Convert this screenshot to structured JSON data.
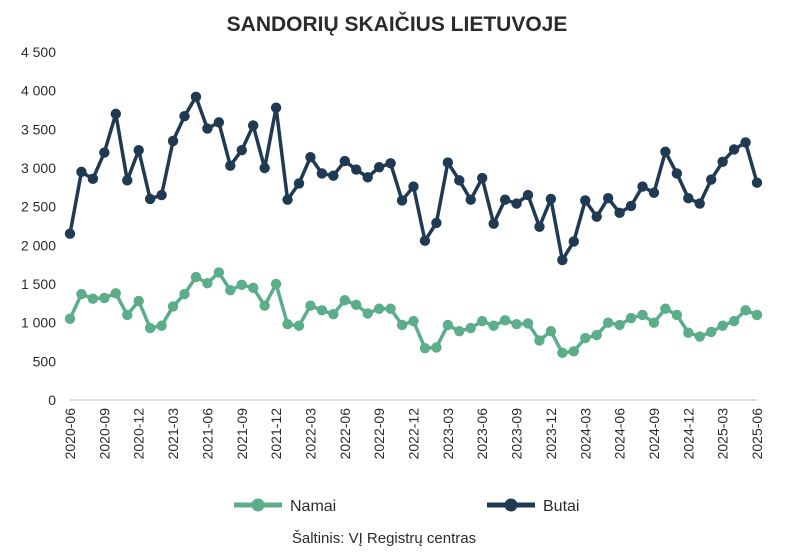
{
  "chart_data": {
    "type": "line",
    "title": "SANDORIŲ SKAIČIUS LIETUVOJE",
    "source": "Šaltinis: VĮ Registrų centras",
    "ylim": [
      0,
      4500
    ],
    "yticks": [
      0,
      500,
      1000,
      1500,
      2000,
      2500,
      3000,
      3500,
      4000,
      4500
    ],
    "ytick_labels": [
      "0",
      "500",
      "1 000",
      "1 500",
      "2 000",
      "2 500",
      "3 000",
      "3 500",
      "4 000",
      "4 500"
    ],
    "xtick_labels": [
      "2020-06",
      "2020-09",
      "2020-12",
      "2021-03",
      "2021-06",
      "2021-09",
      "2021-12",
      "2022-03",
      "2022-06",
      "2022-09",
      "2022-12",
      "2023-03",
      "2023-06",
      "2023-09",
      "2023-12",
      "2024-03",
      "2024-06",
      "2024-09",
      "2024-12",
      "2025-03",
      "2025-06"
    ],
    "x": [
      "2020-06",
      "2020-07",
      "2020-08",
      "2020-09",
      "2020-10",
      "2020-11",
      "2020-12",
      "2021-01",
      "2021-02",
      "2021-03",
      "2021-04",
      "2021-05",
      "2021-06",
      "2021-07",
      "2021-08",
      "2021-09",
      "2021-10",
      "2021-11",
      "2021-12",
      "2022-01",
      "2022-02",
      "2022-03",
      "2022-04",
      "2022-05",
      "2022-06",
      "2022-07",
      "2022-08",
      "2022-09",
      "2022-10",
      "2022-11",
      "2022-12",
      "2023-01",
      "2023-02",
      "2023-03",
      "2023-04",
      "2023-05",
      "2023-06",
      "2023-07",
      "2023-08",
      "2023-09",
      "2023-10",
      "2023-11",
      "2023-12",
      "2024-01",
      "2024-02",
      "2024-03",
      "2024-04",
      "2024-05",
      "2024-06",
      "2024-07",
      "2024-08",
      "2024-09",
      "2024-10",
      "2024-11",
      "2024-12",
      "2025-01",
      "2025-02",
      "2025-03",
      "2025-04",
      "2025-05",
      "2025-06"
    ],
    "legend_position": "bottom",
    "grid": false,
    "series": [
      {
        "name": "Namai",
        "color": "#5cad8a",
        "values": [
          1050,
          1370,
          1310,
          1320,
          1380,
          1100,
          1280,
          930,
          960,
          1210,
          1370,
          1590,
          1510,
          1650,
          1420,
          1490,
          1450,
          1220,
          1500,
          980,
          960,
          1220,
          1160,
          1110,
          1290,
          1230,
          1120,
          1180,
          1180,
          970,
          1020,
          670,
          680,
          970,
          890,
          930,
          1020,
          960,
          1030,
          980,
          990,
          770,
          890,
          610,
          630,
          800,
          840,
          1000,
          970,
          1060,
          1100,
          1000,
          1180,
          1100,
          870,
          820,
          880,
          960,
          1020,
          1160,
          1100
        ]
      },
      {
        "name": "Butai",
        "color": "#1f3a52",
        "values": [
          2150,
          2950,
          2860,
          3200,
          3700,
          2840,
          3230,
          2600,
          2650,
          3350,
          3670,
          3920,
          3510,
          3590,
          3030,
          3230,
          3550,
          3000,
          3780,
          2590,
          2800,
          3140,
          2930,
          2900,
          3090,
          2980,
          2880,
          3010,
          3060,
          2580,
          2760,
          2060,
          2290,
          3070,
          2840,
          2590,
          2870,
          2280,
          2590,
          2540,
          2650,
          2240,
          2600,
          1810,
          2050,
          2580,
          2370,
          2610,
          2420,
          2510,
          2760,
          2680,
          3210,
          2930,
          2610,
          2540,
          2850,
          3080,
          3240,
          3330,
          2810
        ]
      }
    ]
  }
}
